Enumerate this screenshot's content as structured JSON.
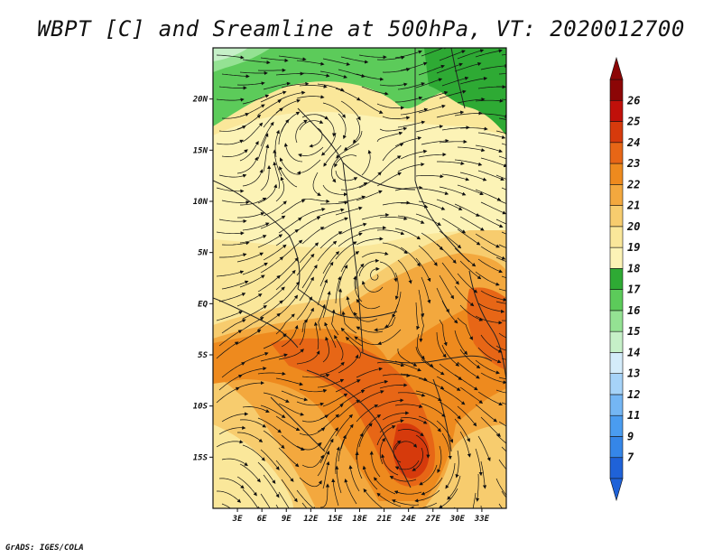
{
  "title": "WBPT [C] and Sreamline at 500hPa, VT: 2020012700",
  "footer": "GrADS: IGES/COLA",
  "map": {
    "lon_range": [
      0,
      36
    ],
    "lat_range": [
      -20,
      25
    ],
    "lon_ticks": [
      "3E",
      "6E",
      "9E",
      "12E",
      "15E",
      "18E",
      "21E",
      "24E",
      "27E",
      "30E",
      "33E"
    ],
    "lon_values": [
      3,
      6,
      9,
      12,
      15,
      18,
      21,
      24,
      27,
      30,
      33
    ],
    "lat_ticks": [
      "20N",
      "15N",
      "10N",
      "5N",
      "EQ",
      "5S",
      "10S",
      "15S"
    ],
    "lat_values": [
      20,
      15,
      10,
      5,
      0,
      -5,
      -10,
      -15
    ]
  },
  "colorbar": {
    "labels": [
      "7",
      "9",
      "11",
      "12",
      "13",
      "14",
      "15",
      "16",
      "17",
      "18",
      "19",
      "20",
      "21",
      "22",
      "23",
      "24",
      "25",
      "26"
    ],
    "colors": [
      "#1f62d8",
      "#3586e8",
      "#4a9cf0",
      "#74b6f4",
      "#a6d3f8",
      "#d4ecfa",
      "#c6f0c8",
      "#94e293",
      "#5ccb5a",
      "#2eaa34",
      "#fcf3b6",
      "#fae79a",
      "#f7cc6e",
      "#f3a83e",
      "#ee8a1e",
      "#e76616",
      "#d63a0c",
      "#c0100a",
      "#8c0606"
    ]
  },
  "legend_arrow_colors": {
    "low": "#1f62d8",
    "high": "#8c0606"
  }
}
